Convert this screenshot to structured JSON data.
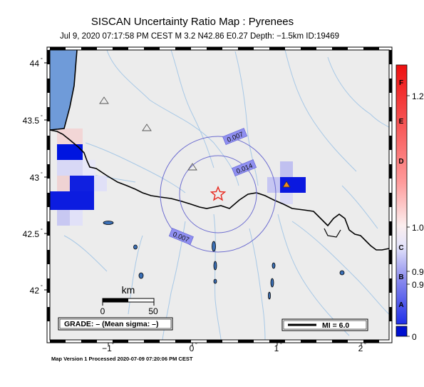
{
  "title": "SISCAN Uncertainty Ratio Map : Pyrenees",
  "subtitle": "Jul  9, 2020 07:17:58 PM CEST   M 3.2   N42.86 E0.27   Depth: −1.5km   ID:19469",
  "footer": "Map Version 1 Processed 2020-07-09 07:20:06 PM CEST",
  "grade_box": "GRADE: – (Mean sigma: –)",
  "mi_box": "MI = 6.0",
  "scale_bar": {
    "unit": "km",
    "start": "0",
    "end": "50"
  },
  "lat_labels": [
    "44",
    "43.5",
    "43",
    "42.5",
    "42"
  ],
  "lon_labels": [
    "−1",
    "0",
    "1",
    "2"
  ],
  "contours": [
    "0.007",
    "0.014",
    "0.007"
  ],
  "colorbar": {
    "letters": [
      "F",
      "E",
      "D",
      "C",
      "B",
      "A"
    ],
    "values": [
      "1.2",
      "1.0",
      "0.9",
      "0.9",
      "0"
    ]
  },
  "colors": {
    "land": "#ececec",
    "sea": "#6f9bd9",
    "river": "#a7c8e6",
    "contour": "#6c6cd0",
    "epicenter": "#e8281e",
    "high_ratio": "#0010e0"
  }
}
